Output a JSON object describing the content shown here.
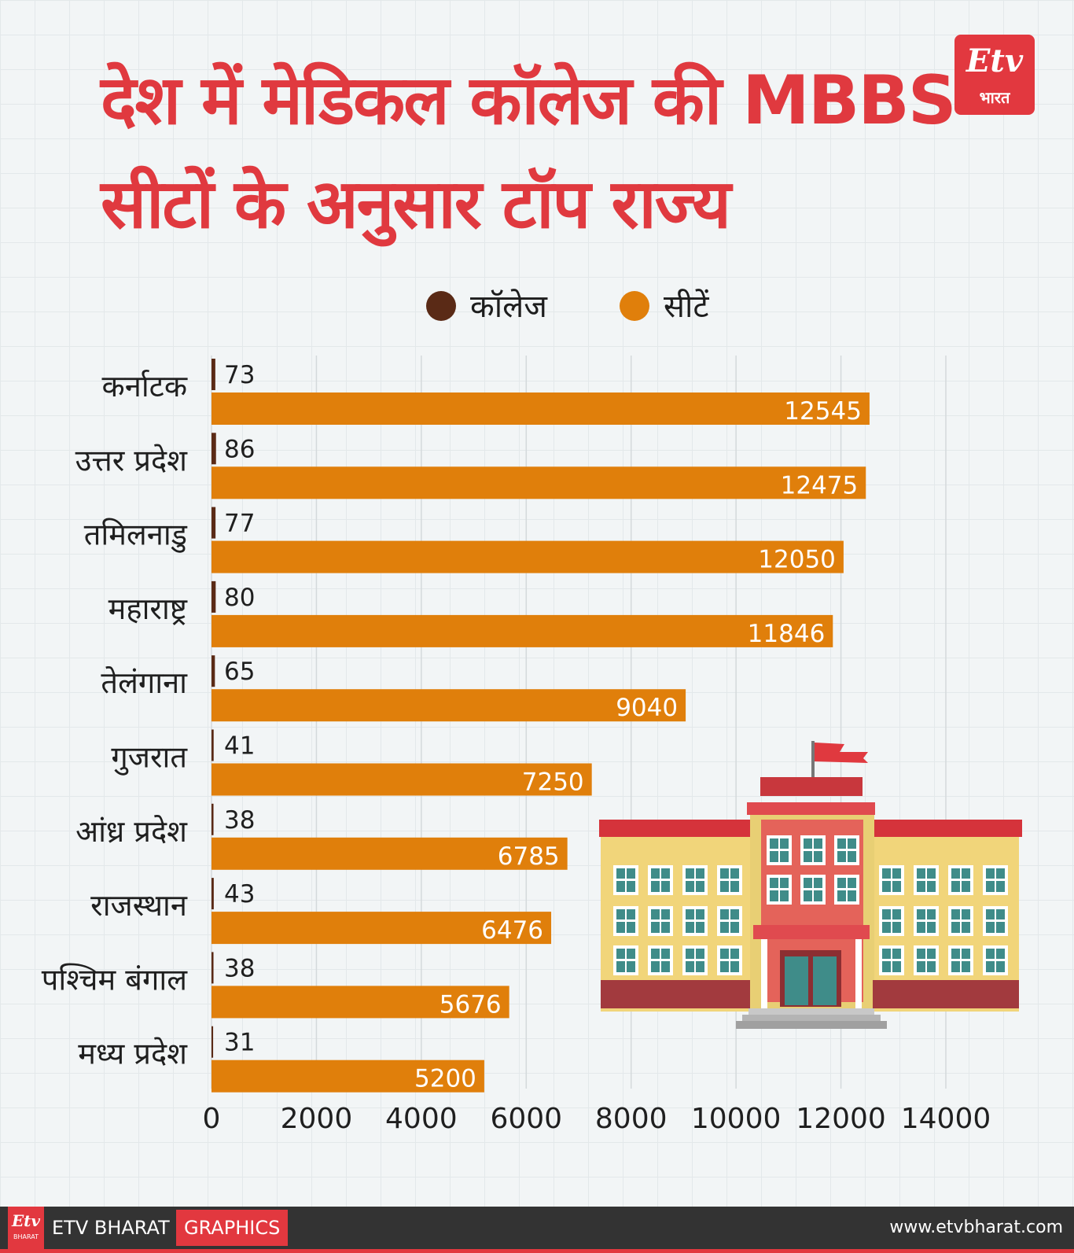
{
  "title": {
    "line1": "देश में मेडिकल कॉलेज की MBBS",
    "line2": "सीटों के अनुसार टॉप राज्य"
  },
  "logo": {
    "etv": "Etv",
    "bharat": "भारत"
  },
  "legend": [
    {
      "label": "कॉलेज",
      "color": "#5a2a16"
    },
    {
      "label": "सीटें",
      "color": "#e07f0b"
    }
  ],
  "chart_data": {
    "type": "bar",
    "orientation": "horizontal",
    "title": "देश में मेडिकल कॉलेज की MBBS सीटों के अनुसार टॉप राज्य",
    "categories": [
      "कर्नाटक",
      "उत्तर प्रदेश",
      "तमिलनाडु",
      "महाराष्ट्र",
      "तेलंगाना",
      "गुजरात",
      "आंध्र प्रदेश",
      "राजस्थान",
      "पश्चिम बंगाल",
      "मध्य प्रदेश"
    ],
    "series": [
      {
        "name": "कॉलेज",
        "color": "#5a2a16",
        "values": [
          73,
          86,
          77,
          80,
          65,
          41,
          38,
          43,
          38,
          31
        ]
      },
      {
        "name": "सीटें",
        "color": "#e07f0b",
        "values": [
          12545,
          12475,
          12050,
          11846,
          9040,
          7250,
          6785,
          6476,
          5676,
          5200
        ]
      }
    ],
    "xlim": [
      0,
      14000
    ],
    "x_ticks": [
      "0",
      "2000",
      "4000",
      "6000",
      "8000",
      "10000",
      "12000",
      "14000"
    ],
    "grid": true,
    "legend_position": "top"
  },
  "footer": {
    "logo": "Etv",
    "logo_sub": "BHARAT",
    "brand": "ETV BHARAT",
    "graphics": "GRAPHICS",
    "url": "www.etvbharat.com"
  }
}
